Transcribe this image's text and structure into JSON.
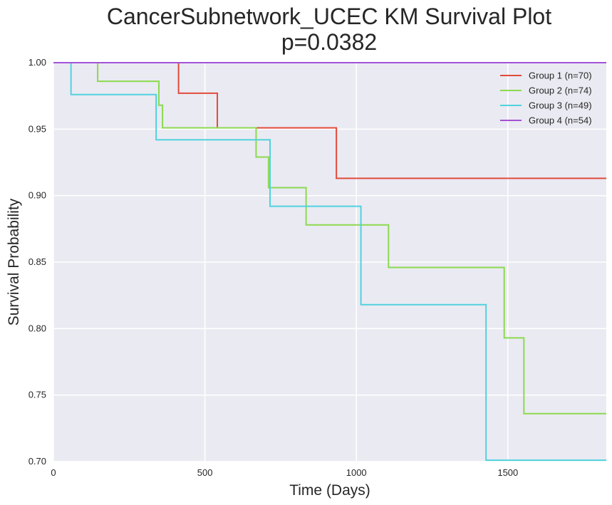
{
  "chart_data": {
    "type": "line",
    "title": "CancerSubnetwork_UCEC KM Survival Plot",
    "subtitle": "p=0.0382",
    "xlabel": "Time (Days)",
    "ylabel": "Survival Probability",
    "xlim": [
      0,
      1825
    ],
    "ylim": [
      0.7,
      1.0
    ],
    "xticks": [
      0,
      500,
      1000,
      1500
    ],
    "yticks": [
      0.7,
      0.75,
      0.8,
      0.85,
      0.9,
      0.95,
      1.0
    ],
    "xtick_labels": [
      "0",
      "500",
      "1000",
      "1500"
    ],
    "ytick_labels": [
      "0.70",
      "0.75",
      "0.80",
      "0.85",
      "0.90",
      "0.95",
      "1.00"
    ],
    "grid": true,
    "legend_position": "top-right",
    "series": [
      {
        "name": "Group 1 (n=70)",
        "color": "#e24a3b",
        "x": [
          0,
          413,
          541,
          934,
          1825
        ],
        "y": [
          1.0,
          0.977,
          0.951,
          0.913,
          0.913
        ]
      },
      {
        "name": "Group 2 (n=74)",
        "color": "#8cd94f",
        "x": [
          0,
          146,
          348,
          360,
          669,
          710,
          713,
          834,
          1106,
          1488,
          1553,
          1825
        ],
        "y": [
          1.0,
          0.986,
          0.968,
          0.951,
          0.929,
          0.906,
          0.906,
          0.878,
          0.846,
          0.793,
          0.736,
          0.736
        ]
      },
      {
        "name": "Group 3 (n=49)",
        "color": "#4fd2de",
        "x": [
          0,
          58,
          339,
          715,
          1015,
          1428,
          1825
        ],
        "y": [
          1.0,
          0.976,
          0.942,
          0.892,
          0.818,
          0.701,
          0.701
        ]
      },
      {
        "name": "Group 4 (n=54)",
        "color": "#a352d8",
        "x": [
          0,
          1825
        ],
        "y": [
          1.0,
          1.0
        ]
      }
    ]
  }
}
